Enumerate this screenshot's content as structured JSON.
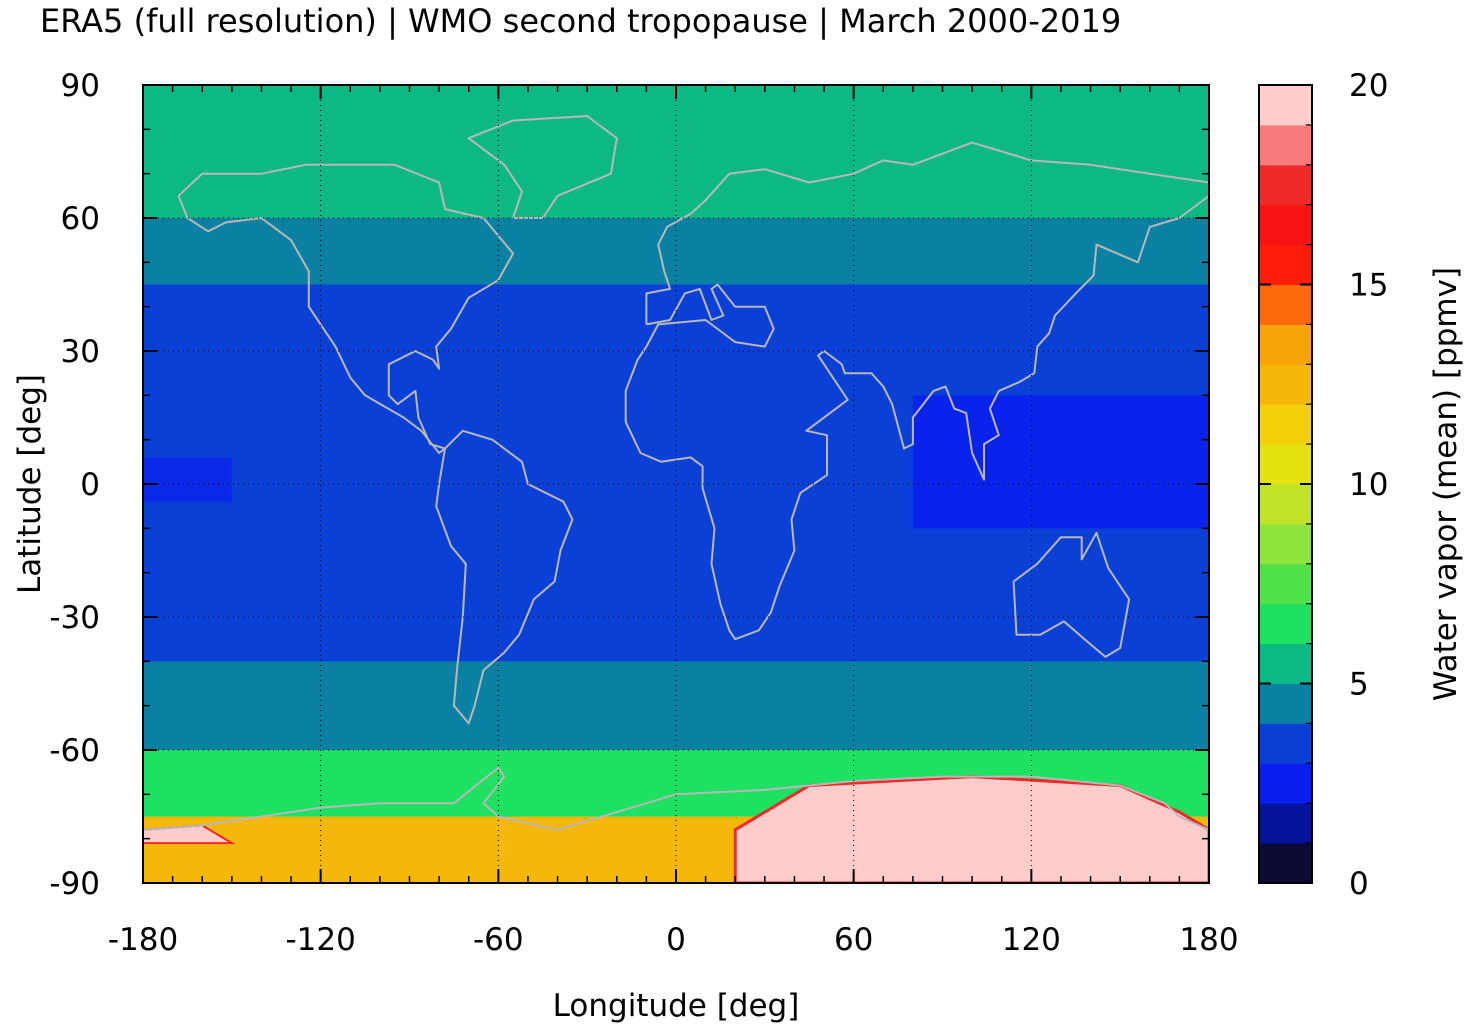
{
  "title": "ERA5 (full resolution) | WMO second tropopause | March 2000-2019",
  "chart_data": {
    "type": "heatmap",
    "title": "ERA5 (full resolution) | WMO second tropopause | March 2000-2019",
    "xlabel": "Longitude [deg]",
    "ylabel": "Latitude [deg]",
    "xlim": [
      -180,
      180
    ],
    "ylim": [
      -90,
      90
    ],
    "x_ticks": [
      "-180",
      "-120",
      "-60",
      "0",
      "60",
      "120",
      "180"
    ],
    "y_ticks": [
      "90",
      "60",
      "30",
      "0",
      "-30",
      "-60",
      "-90"
    ],
    "grid": true,
    "colorbar": {
      "label": "Water vapor (mean) [ppmv]",
      "range": [
        0,
        20
      ],
      "ticks": [
        "20",
        "15",
        "10",
        "5",
        "0"
      ],
      "levels": [
        0,
        1,
        2,
        3,
        4,
        5,
        6,
        7,
        8,
        9,
        10,
        11,
        12,
        13,
        14,
        15,
        16,
        17,
        18,
        19,
        20
      ],
      "colors": [
        "#0b0b33",
        "#07129a",
        "#0a1ef0",
        "#0a40d6",
        "#0a80a3",
        "#0cb883",
        "#1ee061",
        "#50e048",
        "#8ee33c",
        "#c0e32a",
        "#e3e30f",
        "#f3cf0a",
        "#f5b80a",
        "#f7a40a",
        "#fa6a0a",
        "#ff1e0a",
        "#f81414",
        "#ee2a2a",
        "#f87a7a",
        "#ffcccc"
      ]
    },
    "zonal_bands": [
      {
        "lat_range": [
          60,
          90
        ],
        "value_ppmv": 5.5
      },
      {
        "lat_range": [
          45,
          60
        ],
        "value_ppmv": 4.5
      },
      {
        "lat_range": [
          -40,
          45
        ],
        "value_ppmv": 3.5
      },
      {
        "lat_range": [
          -10,
          20
        ],
        "region": "tropical west pacific",
        "value_ppmv": 2.5
      },
      {
        "lat_range": [
          -60,
          -40
        ],
        "value_ppmv": 4.5
      },
      {
        "lat_range": [
          -75,
          -60
        ],
        "value_ppmv": 6.5
      },
      {
        "lat_range": [
          -90,
          -75
        ],
        "region": "antarctica",
        "value_ppmv": 20
      }
    ]
  }
}
